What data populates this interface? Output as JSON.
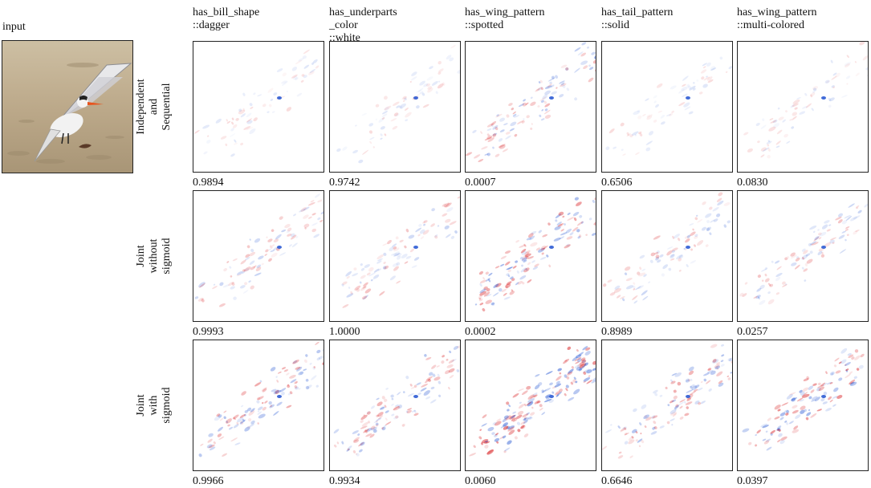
{
  "input_label": "input",
  "columns": [
    {
      "label": "has_bill_shape\n::dagger"
    },
    {
      "label": "has_underparts\n_color\n::white"
    },
    {
      "label": "has_wing_pattern\n::spotted"
    },
    {
      "label": "has_tail_pattern\n::solid"
    },
    {
      "label": "has_wing_pattern\n::multi-colored"
    }
  ],
  "rows": [
    {
      "label": "Independent\nand\nSequential",
      "scores": [
        "0.9894",
        "0.9742",
        "0.0007",
        "0.6506",
        "0.0830"
      ]
    },
    {
      "label": "Joint\nwithout\nsigmoid",
      "scores": [
        "0.9993",
        "1.0000",
        "0.0002",
        "0.8989",
        "0.0257"
      ]
    },
    {
      "label": "Joint\nwith\nsigmoid",
      "scores": [
        "0.9966",
        "0.9934",
        "0.0060",
        "0.6646",
        "0.0397"
      ]
    }
  ],
  "colors": {
    "positive": "#d7191c",
    "negative": "#2c5bd4",
    "background": "#ffffff"
  }
}
